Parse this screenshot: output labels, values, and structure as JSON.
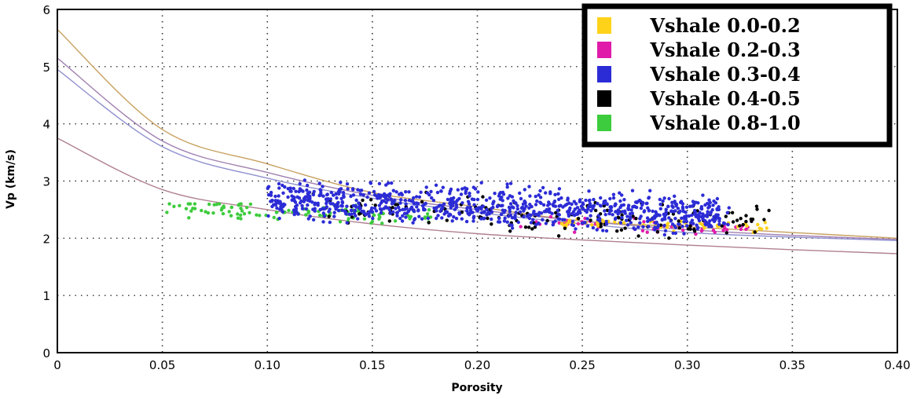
{
  "chart_data": {
    "type": "scatter",
    "title": "",
    "xlabel": "Porosity",
    "ylabel": "Vp (km/s)",
    "xlim": [
      0,
      0.4
    ],
    "ylim": [
      0,
      6
    ],
    "x_ticks": [
      "0",
      "0.05",
      "0.10",
      "0.15",
      "0.20",
      "0.25",
      "0.30",
      "0.35",
      "0.40"
    ],
    "y_ticks": [
      "0",
      "1",
      "2",
      "3",
      "4",
      "5",
      "6"
    ],
    "grid": "dotted",
    "legend_position": "top-right",
    "series": [
      {
        "name": "Vshale 0.0-0.2",
        "color": "#FFD21A",
        "x_range": [
          0.24,
          0.34
        ],
        "y_range": [
          2.1,
          2.5
        ],
        "count": 60
      },
      {
        "name": "Vshale 0.2-0.3",
        "color": "#E01BAA",
        "x_range": [
          0.22,
          0.33
        ],
        "y_range": [
          2.0,
          2.5
        ],
        "count": 50
      },
      {
        "name": "Vshale 0.3-0.4",
        "color": "#2C2CD6",
        "x_range": [
          0.1,
          0.32
        ],
        "y_range": [
          1.8,
          3.2
        ],
        "count": 900
      },
      {
        "name": "Vshale 0.4-0.5",
        "color": "#000000",
        "x_range": [
          0.12,
          0.34
        ],
        "y_range": [
          1.8,
          3.0
        ],
        "count": 150
      },
      {
        "name": "Vshale 0.8-1.0",
        "color": "#3DCC3D",
        "x_range": [
          0.05,
          0.18
        ],
        "y_range": [
          2.0,
          2.6
        ],
        "count": 120
      }
    ],
    "reference_curves": [
      {
        "color": "#C8A060",
        "intercept": 5.65,
        "points": [
          [
            0,
            5.65
          ],
          [
            0.05,
            3.9
          ],
          [
            0.1,
            3.3
          ],
          [
            0.15,
            2.8
          ],
          [
            0.2,
            2.55
          ],
          [
            0.25,
            2.3
          ],
          [
            0.3,
            2.2
          ],
          [
            0.35,
            2.1
          ],
          [
            0.4,
            2.0
          ]
        ]
      },
      {
        "color": "#A080B0",
        "intercept": 5.15,
        "points": [
          [
            0,
            5.15
          ],
          [
            0.05,
            3.7
          ],
          [
            0.1,
            3.15
          ],
          [
            0.15,
            2.75
          ],
          [
            0.2,
            2.5
          ],
          [
            0.25,
            2.3
          ],
          [
            0.3,
            2.15
          ],
          [
            0.35,
            2.05
          ],
          [
            0.4,
            1.98
          ]
        ]
      },
      {
        "color": "#9090D0",
        "intercept": 4.95,
        "points": [
          [
            0,
            4.95
          ],
          [
            0.05,
            3.6
          ],
          [
            0.1,
            3.05
          ],
          [
            0.15,
            2.7
          ],
          [
            0.2,
            2.45
          ],
          [
            0.25,
            2.25
          ],
          [
            0.3,
            2.1
          ],
          [
            0.35,
            2.02
          ],
          [
            0.4,
            1.96
          ]
        ]
      },
      {
        "color": "#B08090",
        "intercept": 3.75,
        "points": [
          [
            0,
            3.75
          ],
          [
            0.05,
            2.85
          ],
          [
            0.1,
            2.5
          ],
          [
            0.15,
            2.25
          ],
          [
            0.2,
            2.08
          ],
          [
            0.25,
            1.97
          ],
          [
            0.3,
            1.88
          ],
          [
            0.35,
            1.8
          ],
          [
            0.4,
            1.73
          ]
        ]
      }
    ]
  }
}
